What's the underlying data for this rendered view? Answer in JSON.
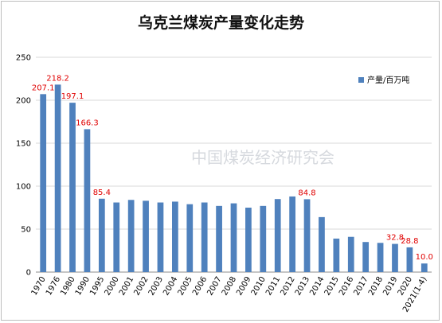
{
  "chart_data": {
    "type": "bar",
    "title": "乌克兰煤炭产量变化走势",
    "xlabel": "",
    "ylabel": "",
    "ylim": [
      0,
      250
    ],
    "yticks": [
      0,
      50,
      100,
      150,
      200,
      250
    ],
    "grid": true,
    "legend_position": "top-right",
    "categories": [
      "1970",
      "1976",
      "1980",
      "1990",
      "1995",
      "2000",
      "2001",
      "2002",
      "2003",
      "2004",
      "2005",
      "2006",
      "2007",
      "2008",
      "2009",
      "2010",
      "2011",
      "2012",
      "2013",
      "2014",
      "2015",
      "2016",
      "2017",
      "2018",
      "2019",
      "2020",
      "2021(1-4)"
    ],
    "series": [
      {
        "name": "产量/百万吨",
        "color": "#4f81bd",
        "values": [
          207.1,
          218.2,
          197.1,
          166.3,
          85.4,
          81,
          84,
          83,
          81,
          82,
          79,
          81,
          77,
          80,
          75,
          77,
          85,
          88,
          84.8,
          64,
          39,
          41,
          35,
          34,
          32.8,
          28.8,
          10.0
        ]
      }
    ],
    "data_labels": [
      {
        "category": "1970",
        "text": "207.1"
      },
      {
        "category": "1976",
        "text": "218.2"
      },
      {
        "category": "1980",
        "text": "197.1"
      },
      {
        "category": "1990",
        "text": "166.3"
      },
      {
        "category": "1995",
        "text": "85.4"
      },
      {
        "category": "2013",
        "text": "84.8"
      },
      {
        "category": "2019",
        "text": "32.8"
      },
      {
        "category": "2020",
        "text": "28.8"
      },
      {
        "category": "2021(1-4)",
        "text": "10.0"
      }
    ],
    "label_color": "#e00000"
  },
  "watermark": "中国煤炭经济研究会"
}
